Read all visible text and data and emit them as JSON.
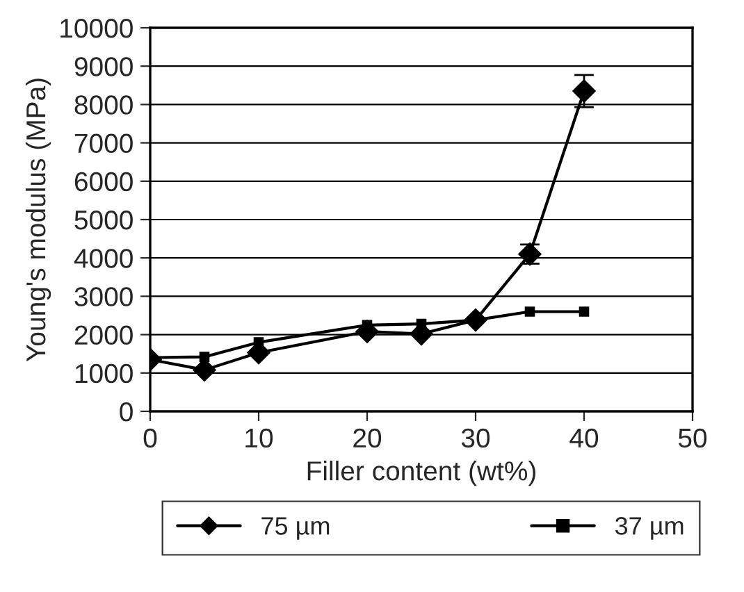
{
  "chart_data": {
    "type": "line",
    "xlabel": "Filler content (wt%)",
    "ylabel": "Young's modulus (MPa)",
    "x": [
      0,
      5,
      10,
      20,
      25,
      30,
      35,
      40
    ],
    "series": [
      {
        "name": "75 µm",
        "color": "#000000",
        "marker": "diamond",
        "values": [
          1350,
          1080,
          1530,
          2080,
          2020,
          2380,
          4100,
          8350
        ],
        "errors": [
          null,
          null,
          null,
          null,
          null,
          null,
          250,
          420
        ]
      },
      {
        "name": "37 µm",
        "color": "#000000",
        "marker": "square",
        "values": [
          1400,
          1420,
          1800,
          2250,
          2280,
          2380,
          2600,
          2600
        ]
      }
    ],
    "xlim": [
      0,
      50
    ],
    "xticks": [
      0,
      10,
      20,
      30,
      40,
      50
    ],
    "ylim": [
      0,
      10000
    ],
    "yticks": [
      0,
      1000,
      2000,
      3000,
      4000,
      5000,
      6000,
      7000,
      8000,
      9000,
      10000
    ],
    "grid": "y",
    "legend": "bottom"
  }
}
